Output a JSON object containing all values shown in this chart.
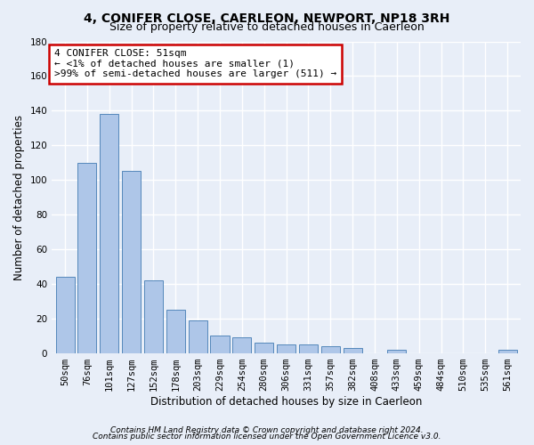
{
  "title": "4, CONIFER CLOSE, CAERLEON, NEWPORT, NP18 3RH",
  "subtitle": "Size of property relative to detached houses in Caerleon",
  "xlabel": "Distribution of detached houses by size in Caerleon",
  "ylabel": "Number of detached properties",
  "categories": [
    "50sqm",
    "76sqm",
    "101sqm",
    "127sqm",
    "152sqm",
    "178sqm",
    "203sqm",
    "229sqm",
    "254sqm",
    "280sqm",
    "306sqm",
    "331sqm",
    "357sqm",
    "382sqm",
    "408sqm",
    "433sqm",
    "459sqm",
    "484sqm",
    "510sqm",
    "535sqm",
    "561sqm"
  ],
  "values": [
    44,
    110,
    138,
    105,
    42,
    25,
    19,
    10,
    9,
    6,
    5,
    5,
    4,
    3,
    0,
    2,
    0,
    0,
    0,
    0,
    2
  ],
  "bar_color": "#aec6e8",
  "bar_edge_color": "#5588bb",
  "ylim": [
    0,
    180
  ],
  "yticks": [
    0,
    20,
    40,
    60,
    80,
    100,
    120,
    140,
    160,
    180
  ],
  "annotation_line1": "4 CONIFER CLOSE: 51sqm",
  "annotation_line2": "← <1% of detached houses are smaller (1)",
  "annotation_line3": ">99% of semi-detached houses are larger (511) →",
  "annotation_box_color": "#ffffff",
  "annotation_box_edge_color": "#cc0000",
  "footer_line1": "Contains HM Land Registry data © Crown copyright and database right 2024.",
  "footer_line2": "Contains public sector information licensed under the Open Government Licence v3.0.",
  "bg_color": "#e8eef8",
  "plot_bg_color": "#e8eef8",
  "grid_color": "#ffffff",
  "title_fontsize": 10,
  "subtitle_fontsize": 9,
  "annotation_fontsize": 8,
  "axis_label_fontsize": 8.5,
  "tick_fontsize": 7.5,
  "footer_fontsize": 6.5
}
